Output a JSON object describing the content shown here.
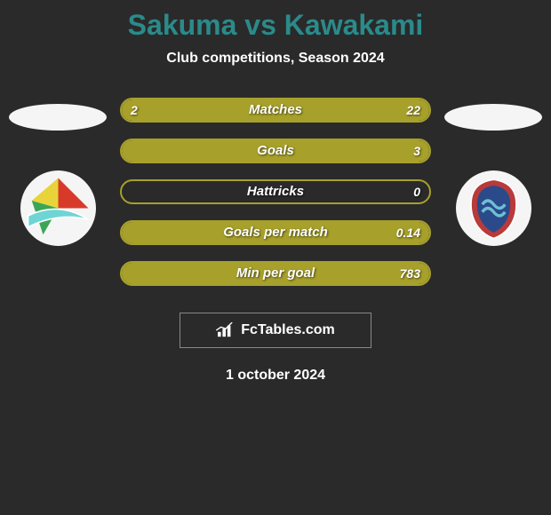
{
  "title": {
    "text": "Sakuma vs Kawakami",
    "color": "#2b8a8a",
    "fontsize": 32
  },
  "subtitle": "Club competitions, Season 2024",
  "accent_color": "#a7a02b",
  "background_color": "#2a2a2a",
  "branding": {
    "label": "FcTables.com"
  },
  "date": "1 october 2024",
  "left_club": {
    "badge_bg": "#f5f5f5",
    "stripes": [
      {
        "color": "#d83a2a"
      },
      {
        "color": "#e8d43a"
      },
      {
        "color": "#3aa655"
      }
    ],
    "swoosh_color": "#6fd4d4"
  },
  "right_club": {
    "badge_bg": "#f5f5f5",
    "shield_outer": "#b83a3a",
    "shield_inner": "#2a4a8a",
    "wave_color": "#6fbfd4"
  },
  "bars": [
    {
      "label": "Matches",
      "left_val": "2",
      "right_val": "22",
      "left_pct": 8,
      "right_pct": 92
    },
    {
      "label": "Goals",
      "left_val": "",
      "right_val": "3",
      "left_pct": 0,
      "right_pct": 100
    },
    {
      "label": "Hattricks",
      "left_val": "",
      "right_val": "0",
      "left_pct": 0,
      "right_pct": 0
    },
    {
      "label": "Goals per match",
      "left_val": "",
      "right_val": "0.14",
      "left_pct": 0,
      "right_pct": 100
    },
    {
      "label": "Min per goal",
      "left_val": "",
      "right_val": "783",
      "left_pct": 0,
      "right_pct": 100
    }
  ]
}
